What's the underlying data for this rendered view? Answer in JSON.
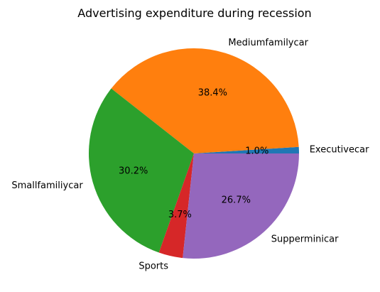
{
  "chart_data": {
    "type": "pie",
    "title": "Advertising expenditure during recession",
    "start_angle_deg": 0,
    "direction": "counterclockwise",
    "slices": [
      {
        "label": "Executivecar",
        "percent": 1.0,
        "pct_text": "1.0%",
        "color": "#1f77b4"
      },
      {
        "label": "Mediumfamilycar",
        "percent": 38.4,
        "pct_text": "38.4%",
        "color": "#ff7f0e"
      },
      {
        "label": "Smallfamiliycar",
        "percent": 30.2,
        "pct_text": "30.2%",
        "color": "#2ca02c"
      },
      {
        "label": "Sports",
        "percent": 3.7,
        "pct_text": "3.7%",
        "color": "#d62728"
      },
      {
        "label": "Supperminicar",
        "percent": 26.7,
        "pct_text": "26.7%",
        "color": "#9467bd"
      }
    ]
  }
}
